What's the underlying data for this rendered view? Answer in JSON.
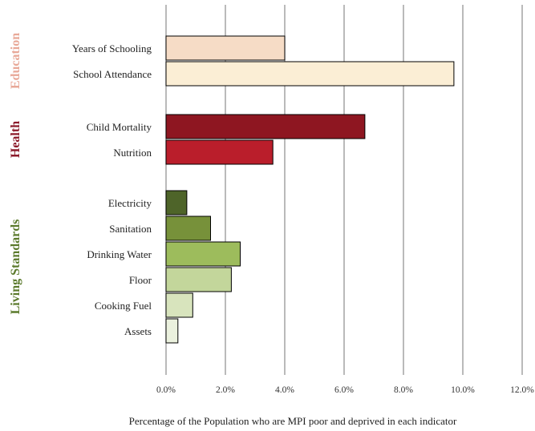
{
  "chart_data": {
    "type": "bar",
    "orientation": "horizontal",
    "xlabel": "Percentage of the Population who are MPI poor and deprived in each indicator",
    "xlim": [
      0,
      12
    ],
    "x_unit": "%",
    "xticks": [
      "0.0%",
      "2.0%",
      "4.0%",
      "6.0%",
      "8.0%",
      "10.0%",
      "12.0%"
    ],
    "grid": "vertical",
    "groups": [
      {
        "name": "Education",
        "color": "#e8a898",
        "items": [
          {
            "label": "Years of Schooling",
            "value": 4.0,
            "color": "#f6dcc6"
          },
          {
            "label": "School Attendance",
            "value": 9.7,
            "color": "#fbeed5"
          }
        ]
      },
      {
        "name": "Health",
        "color": "#8b1a2a",
        "items": [
          {
            "label": "Child Mortality",
            "value": 6.7,
            "color": "#8e1621"
          },
          {
            "label": "Nutrition",
            "value": 3.6,
            "color": "#ba1e2b"
          }
        ]
      },
      {
        "name": "Living Standards",
        "color": "#5b7a2c",
        "items": [
          {
            "label": "Electricity",
            "value": 0.7,
            "color": "#4e6429"
          },
          {
            "label": "Sanitation",
            "value": 1.5,
            "color": "#77913a"
          },
          {
            "label": "Drinking Water",
            "value": 2.5,
            "color": "#9dbc5c"
          },
          {
            "label": "Floor",
            "value": 2.2,
            "color": "#c3d69b"
          },
          {
            "label": "Cooking Fuel",
            "value": 0.9,
            "color": "#d8e4bd"
          },
          {
            "label": "Assets",
            "value": 0.4,
            "color": "#ebf1de"
          }
        ]
      }
    ]
  }
}
